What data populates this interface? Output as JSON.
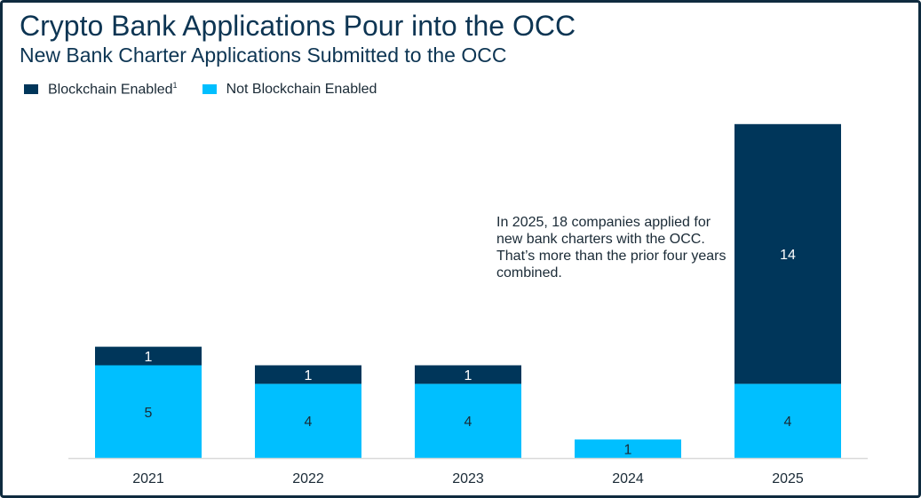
{
  "title": "Crypto Bank Applications Pour into the OCC",
  "subtitle": "New Bank Charter Applications Submitted to the OCC",
  "annotation": "In 2025, 18 companies applied for new bank charters with the OCC. That’s more than the prior four years combined.",
  "colors": {
    "blockchain": "#00365a",
    "not_blockchain": "#00bfff",
    "axis": "#d9d9d9",
    "frame": "#0f2b3f"
  },
  "chart_data": {
    "type": "bar",
    "stacked": true,
    "categories": [
      "2021",
      "2022",
      "2023",
      "2024",
      "2025"
    ],
    "series": [
      {
        "name": "Not Blockchain Enabled",
        "values": [
          5,
          4,
          4,
          1,
          4
        ],
        "labels": [
          "5",
          "4",
          "4",
          "1",
          "4"
        ]
      },
      {
        "name": "Blockchain Enabled",
        "superscript": "1",
        "values": [
          1,
          1,
          1,
          0,
          14
        ],
        "labels": [
          "1",
          "1",
          "1",
          "",
          "14"
        ]
      }
    ],
    "ylim": [
      0,
      18
    ],
    "legend_position": "top-left",
    "grid": false,
    "xlabel": "",
    "ylabel": ""
  }
}
